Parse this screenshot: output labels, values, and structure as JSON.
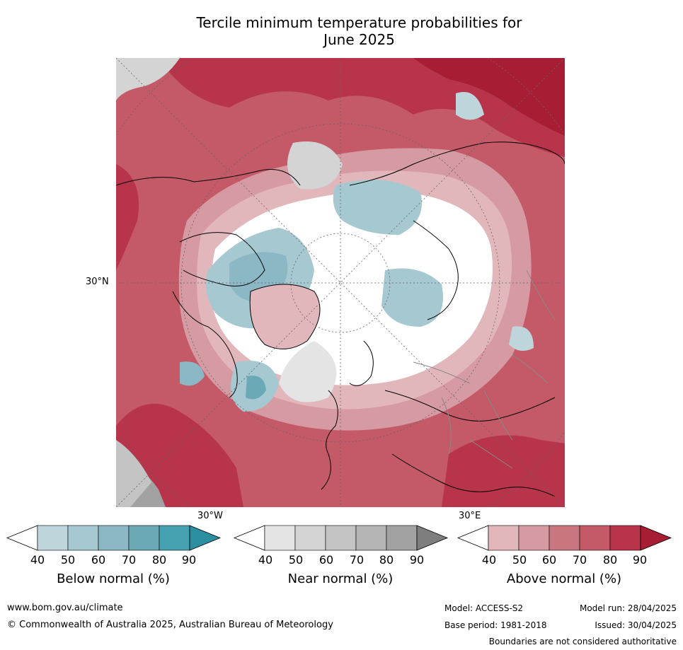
{
  "title_line1": "Tercile minimum temperature probabilities for",
  "title_line2": "June 2025",
  "map": {
    "lat_label": "30°N",
    "lon_labels": [
      "30°W",
      "30°E"
    ]
  },
  "colorbars": [
    {
      "label": "Below normal (%)",
      "ticks": [
        "40",
        "50",
        "60",
        "70",
        "80",
        "90"
      ],
      "colors": [
        "#ffffff",
        "#bfd5dc",
        "#a6c8d0",
        "#8cb7c4",
        "#6ba9b7",
        "#45a0b1",
        "#2b8ea1"
      ]
    },
    {
      "label": "Near normal (%)",
      "ticks": [
        "40",
        "50",
        "60",
        "70",
        "80",
        "90"
      ],
      "colors": [
        "#ffffff",
        "#e4e4e4",
        "#d4d4d4",
        "#c4c4c4",
        "#b4b4b4",
        "#a2a2a2",
        "#7e7e7e"
      ]
    },
    {
      "label": "Above normal (%)",
      "ticks": [
        "40",
        "50",
        "60",
        "70",
        "80",
        "90"
      ],
      "colors": [
        "#ffffff",
        "#e2b7bc",
        "#d69aa2",
        "#c97680",
        "#c45a68",
        "#b7344a",
        "#a71d34"
      ]
    }
  ],
  "footer": {
    "url": "www.bom.gov.au/climate",
    "copyright": "© Commonwealth of Australia 2025, Australian Bureau of Meteorology",
    "model": "Model: ACCESS-S2",
    "base_period": "Base period: 1981-2018",
    "model_run": "Model run: 28/04/2025",
    "issued": "Issued: 30/04/2025",
    "boundaries": "Boundaries are not considered authoritative"
  }
}
